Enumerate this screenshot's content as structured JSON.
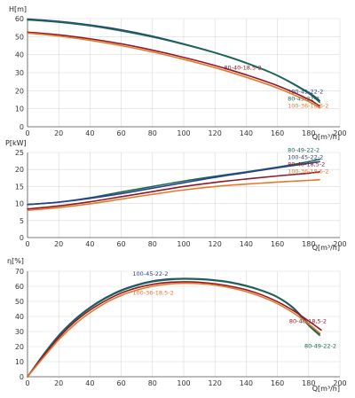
{
  "chart_data": [
    {
      "type": "line",
      "ylabel": "H[m]",
      "xlabel": "Q[m³/h]",
      "xlim": [
        0,
        200
      ],
      "ylim": [
        0,
        60
      ],
      "x_ticks": [
        0,
        20,
        40,
        60,
        80,
        100,
        120,
        140,
        160,
        180,
        200
      ],
      "y_ticks": [
        0,
        10,
        20,
        30,
        40,
        50,
        60
      ],
      "grid": true,
      "series": [
        {
          "name": "100-45-22-2",
          "color": "#2a3f8f",
          "x": [
            0,
            20,
            40,
            60,
            80,
            100,
            120,
            140,
            160,
            180,
            187
          ],
          "y": [
            59.8,
            58.5,
            56.5,
            53.8,
            50.3,
            46.0,
            41.2,
            35.5,
            28.5,
            19.0,
            14.5
          ]
        },
        {
          "name": "80-49-22-2",
          "color": "#1a6a4a",
          "x": [
            0,
            20,
            40,
            60,
            80,
            100,
            120,
            140,
            160,
            180,
            187
          ],
          "y": [
            59.3,
            58.0,
            56.0,
            53.2,
            49.8,
            45.7,
            41.0,
            35.3,
            28.3,
            18.5,
            13.5
          ]
        },
        {
          "name": "80-40-18,5-2",
          "color": "#8b1a2b",
          "x": [
            0,
            20,
            40,
            60,
            80,
            100,
            120,
            140,
            160,
            180,
            187
          ],
          "y": [
            52.5,
            51.0,
            48.8,
            46.0,
            42.5,
            38.5,
            34.0,
            28.8,
            22.8,
            15.2,
            11.5
          ]
        },
        {
          "name": "100-36-18,5-2",
          "color": "#e8772a",
          "x": [
            0,
            20,
            40,
            60,
            80,
            100,
            120,
            140,
            160,
            180,
            187
          ],
          "y": [
            52.0,
            50.3,
            48.0,
            45.0,
            41.5,
            37.4,
            32.8,
            27.5,
            21.5,
            14.0,
            10.5
          ]
        }
      ],
      "series_label_positions": [
        "right",
        "right",
        "mid",
        "right"
      ]
    },
    {
      "type": "line",
      "ylabel": "P[kW]",
      "xlabel": "Q[m³/h]",
      "xlim": [
        0,
        200
      ],
      "ylim": [
        0,
        25
      ],
      "x_ticks": [
        0,
        20,
        40,
        60,
        80,
        100,
        120,
        140,
        160,
        180,
        200
      ],
      "y_ticks": [
        0,
        5,
        10,
        15,
        20,
        25
      ],
      "grid": true,
      "series": [
        {
          "name": "80-49-22-2",
          "color": "#1a6a4a",
          "x": [
            0,
            20,
            40,
            60,
            80,
            100,
            120,
            140,
            160,
            180,
            187
          ],
          "y": [
            9.7,
            10.4,
            11.7,
            13.4,
            15.0,
            16.6,
            18.0,
            19.3,
            20.7,
            22.3,
            23.0
          ]
        },
        {
          "name": "100-45-22-2",
          "color": "#2a3f8f",
          "x": [
            0,
            20,
            40,
            60,
            80,
            100,
            120,
            140,
            160,
            180,
            187
          ],
          "y": [
            9.7,
            10.4,
            11.5,
            12.9,
            14.5,
            16.1,
            17.7,
            19.1,
            20.5,
            21.8,
            22.3
          ]
        },
        {
          "name": "80-40-18,5-2",
          "color": "#8b1a2b",
          "x": [
            0,
            20,
            40,
            60,
            80,
            100,
            120,
            140,
            160,
            180,
            187
          ],
          "y": [
            8.4,
            9.3,
            10.5,
            12.0,
            13.5,
            15.0,
            16.2,
            17.2,
            18.1,
            18.9,
            19.3
          ]
        },
        {
          "name": "100-36-18,5-2",
          "color": "#e8772a",
          "x": [
            0,
            20,
            40,
            60,
            80,
            100,
            120,
            140,
            160,
            180,
            187
          ],
          "y": [
            8.0,
            8.8,
            9.9,
            11.3,
            12.7,
            14.0,
            15.0,
            15.7,
            16.3,
            16.8,
            17.0
          ]
        }
      ],
      "series_label_positions": [
        "right",
        "right",
        "right",
        "right"
      ]
    },
    {
      "type": "line",
      "ylabel": "η[%]",
      "xlabel": "Q[m³/h]",
      "xlim": [
        0,
        200
      ],
      "ylim": [
        0,
        70
      ],
      "x_ticks": [
        0,
        20,
        40,
        60,
        80,
        100,
        120,
        140,
        160,
        180,
        200
      ],
      "y_ticks": [
        0,
        10,
        20,
        30,
        40,
        50,
        60,
        70
      ],
      "grid": true,
      "series": [
        {
          "name": "100-45-22-2",
          "color": "#2a3f8f",
          "x": [
            0,
            10,
            20,
            30,
            40,
            50,
            60,
            70,
            80,
            90,
            100,
            110,
            120,
            130,
            140,
            150,
            160,
            170,
            180,
            187
          ],
          "y": [
            0,
            14.5,
            27.5,
            37.8,
            46.0,
            52.5,
            57.5,
            61.0,
            63.5,
            64.8,
            65.2,
            65.0,
            64.2,
            62.8,
            60.5,
            57.3,
            53.0,
            46.0,
            35.0,
            28.5
          ]
        },
        {
          "name": "80-49-22-2",
          "color": "#1a6a4a",
          "x": [
            0,
            10,
            20,
            30,
            40,
            50,
            60,
            70,
            80,
            90,
            100,
            110,
            120,
            130,
            140,
            150,
            160,
            170,
            180,
            187
          ],
          "y": [
            0,
            14.0,
            27.0,
            37.3,
            45.5,
            52.0,
            57.0,
            60.5,
            63.0,
            64.3,
            64.8,
            64.6,
            63.8,
            62.4,
            60.1,
            57.0,
            52.7,
            45.5,
            34.0,
            27.5
          ]
        },
        {
          "name": "80-40-18,5-2",
          "color": "#8b1a2b",
          "x": [
            0,
            10,
            20,
            30,
            40,
            50,
            60,
            70,
            80,
            90,
            100,
            110,
            120,
            130,
            140,
            150,
            160,
            170,
            180,
            188
          ],
          "y": [
            0,
            13.5,
            26.0,
            36.2,
            44.2,
            50.5,
            55.5,
            59.0,
            61.3,
            62.6,
            63.0,
            62.7,
            61.7,
            60.0,
            57.7,
            54.3,
            49.8,
            44.0,
            37.0,
            31.0
          ]
        },
        {
          "name": "100-36-18,5-2",
          "color": "#e8772a",
          "x": [
            0,
            10,
            20,
            30,
            40,
            50,
            60,
            70,
            80,
            90,
            100,
            110,
            120,
            130,
            140,
            150,
            160,
            170,
            180,
            187
          ],
          "y": [
            0,
            12.5,
            24.5,
            34.5,
            42.5,
            49.0,
            54.0,
            57.5,
            60.0,
            61.5,
            62.0,
            61.8,
            60.8,
            59.0,
            56.5,
            53.0,
            48.5,
            42.5,
            35.0,
            29.0
          ]
        }
      ],
      "series_label_positions": [
        "top",
        "bottom",
        "right",
        "top"
      ]
    }
  ]
}
